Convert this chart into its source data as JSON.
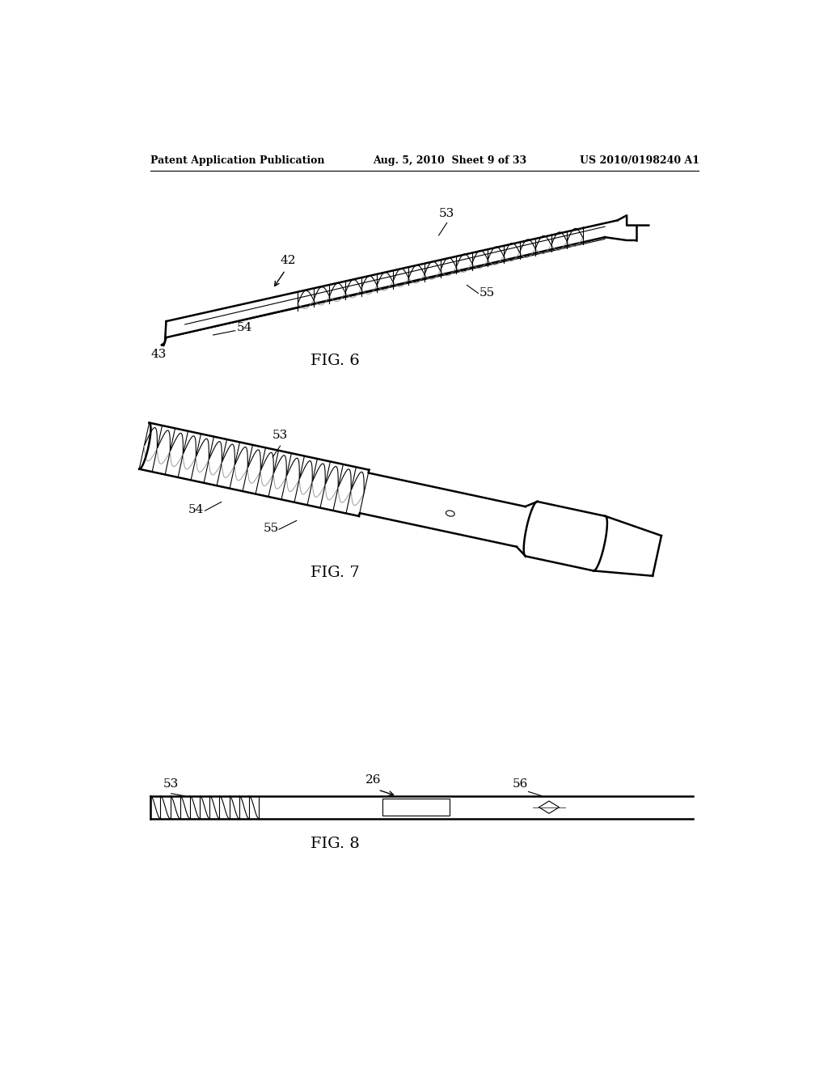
{
  "bg_color": "#ffffff",
  "line_color": "#000000",
  "header_left": "Patent Application Publication",
  "header_center": "Aug. 5, 2010  Sheet 9 of 33",
  "header_right": "US 2010/0198240 A1",
  "fig6_label": "FIG. 6",
  "fig7_label": "FIG. 7",
  "fig8_label": "FIG. 8"
}
